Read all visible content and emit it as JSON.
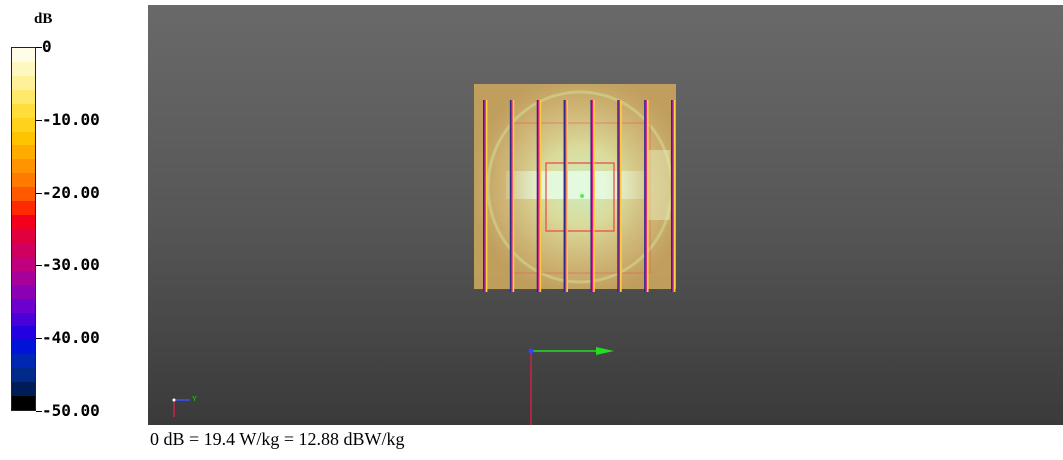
{
  "legend": {
    "unit": "dB",
    "ticks": [
      "0",
      "-10.00",
      "-20.00",
      "-30.00",
      "-40.00",
      "-50.00"
    ],
    "tick_values": [
      0,
      -10,
      -20,
      -30,
      -40,
      -50
    ],
    "range": [
      -50,
      0
    ],
    "colors": [
      "#fffde7",
      "#fff7c0",
      "#fff199",
      "#ffe96a",
      "#ffdd3a",
      "#ffd21c",
      "#ffc400",
      "#ffab00",
      "#ff9400",
      "#ff7a00",
      "#ff5a00",
      "#ff2a00",
      "#f2001e",
      "#e0003f",
      "#d0005e",
      "#c0007c",
      "#a8009a",
      "#8c00b4",
      "#6c00cc",
      "#4a00d8",
      "#2400e0",
      "#0014d8",
      "#0026b4",
      "#002a8a",
      "#001c58",
      "#000000"
    ]
  },
  "viewport": {
    "background_top": "#696969",
    "background_bottom": "#3a3a3a",
    "object": "array",
    "rod_count": 8,
    "main_axis_color_x": "#22dd22",
    "main_axis_color_y": "#cc2244",
    "mini_axis_label": "Y"
  },
  "caption": "0 dB = 19.4 W/kg = 12.88 dBW/kg"
}
